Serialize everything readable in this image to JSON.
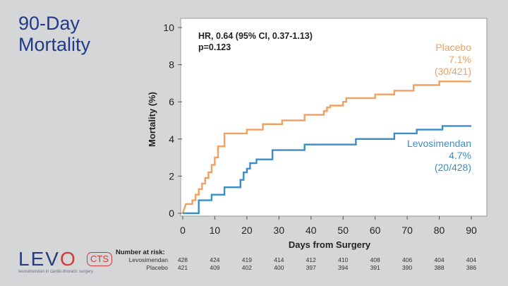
{
  "slide": {
    "title_line1": "90-Day",
    "title_line2": "Mortality"
  },
  "logo": {
    "text_before": "LEV",
    "text_o": "O",
    "badge": "CTS",
    "tagline": "levosimendan in cardio-thoracic surgery"
  },
  "chart_data": {
    "type": "line",
    "step": true,
    "xlabel": "Days from Surgery",
    "ylabel": "Mortality (%)",
    "xlim": [
      0,
      90
    ],
    "ylim": [
      0,
      10
    ],
    "x_ticks": [
      0,
      10,
      20,
      30,
      40,
      50,
      60,
      70,
      80,
      90
    ],
    "y_ticks": [
      0,
      2,
      4,
      6,
      8,
      10
    ],
    "grid": false,
    "annotations": {
      "hr": "HR, 0.64 (95% CI, 0.37-1.13)",
      "p": "p=0.123"
    },
    "series": [
      {
        "name": "Placebo",
        "label_pct": "7.1%",
        "label_count": "(30/421)",
        "color": "#f0a060",
        "points": [
          [
            0,
            0.0
          ],
          [
            1,
            0.5
          ],
          [
            3,
            0.5
          ],
          [
            3,
            0.7
          ],
          [
            4,
            0.7
          ],
          [
            4,
            1.0
          ],
          [
            5,
            1.0
          ],
          [
            5,
            1.3
          ],
          [
            6,
            1.3
          ],
          [
            6,
            1.6
          ],
          [
            7,
            1.6
          ],
          [
            7,
            1.9
          ],
          [
            8,
            1.9
          ],
          [
            8,
            2.2
          ],
          [
            9,
            2.2
          ],
          [
            9,
            2.6
          ],
          [
            10,
            2.6
          ],
          [
            10,
            3.0
          ],
          [
            11,
            3.0
          ],
          [
            11,
            3.6
          ],
          [
            13,
            3.6
          ],
          [
            13,
            4.3
          ],
          [
            20,
            4.3
          ],
          [
            20,
            4.5
          ],
          [
            25,
            4.5
          ],
          [
            25,
            4.8
          ],
          [
            31,
            4.8
          ],
          [
            31,
            5.0
          ],
          [
            38,
            5.0
          ],
          [
            38,
            5.3
          ],
          [
            44,
            5.3
          ],
          [
            44,
            5.5
          ],
          [
            45,
            5.5
          ],
          [
            45,
            5.7
          ],
          [
            46,
            5.7
          ],
          [
            46,
            5.8
          ],
          [
            50,
            5.8
          ],
          [
            50,
            6.0
          ],
          [
            51,
            6.0
          ],
          [
            51,
            6.2
          ],
          [
            60,
            6.2
          ],
          [
            60,
            6.4
          ],
          [
            66,
            6.4
          ],
          [
            66,
            6.6
          ],
          [
            72,
            6.6
          ],
          [
            72,
            6.9
          ],
          [
            80,
            6.9
          ],
          [
            80,
            7.1
          ],
          [
            90,
            7.1
          ]
        ]
      },
      {
        "name": "Levosimendan",
        "label_pct": "4.7%",
        "label_count": "(20/428)",
        "color": "#3a8ec8",
        "points": [
          [
            0,
            0.0
          ],
          [
            5,
            0.0
          ],
          [
            5,
            0.7
          ],
          [
            9,
            0.7
          ],
          [
            9,
            1.0
          ],
          [
            13,
            1.0
          ],
          [
            13,
            1.4
          ],
          [
            18,
            1.4
          ],
          [
            18,
            1.8
          ],
          [
            19,
            1.8
          ],
          [
            19,
            2.2
          ],
          [
            20,
            2.2
          ],
          [
            20,
            2.4
          ],
          [
            21,
            2.4
          ],
          [
            21,
            2.7
          ],
          [
            23,
            2.7
          ],
          [
            23,
            2.9
          ],
          [
            28,
            2.9
          ],
          [
            28,
            3.4
          ],
          [
            38,
            3.4
          ],
          [
            38,
            3.7
          ],
          [
            54,
            3.7
          ],
          [
            54,
            4.0
          ],
          [
            66,
            4.0
          ],
          [
            66,
            4.3
          ],
          [
            73,
            4.3
          ],
          [
            73,
            4.5
          ],
          [
            81,
            4.5
          ],
          [
            81,
            4.7
          ],
          [
            90,
            4.7
          ]
        ]
      }
    ],
    "number_at_risk": {
      "title": "Number at risk:",
      "rows": [
        {
          "name": "Levosimendan",
          "values": [
            "428",
            "424",
            "419",
            "414",
            "412",
            "410",
            "408",
            "406",
            "404",
            "404"
          ]
        },
        {
          "name": "Placebo",
          "values": [
            "421",
            "409",
            "402",
            "400",
            "397",
            "394",
            "391",
            "390",
            "388",
            "386"
          ]
        }
      ]
    }
  }
}
